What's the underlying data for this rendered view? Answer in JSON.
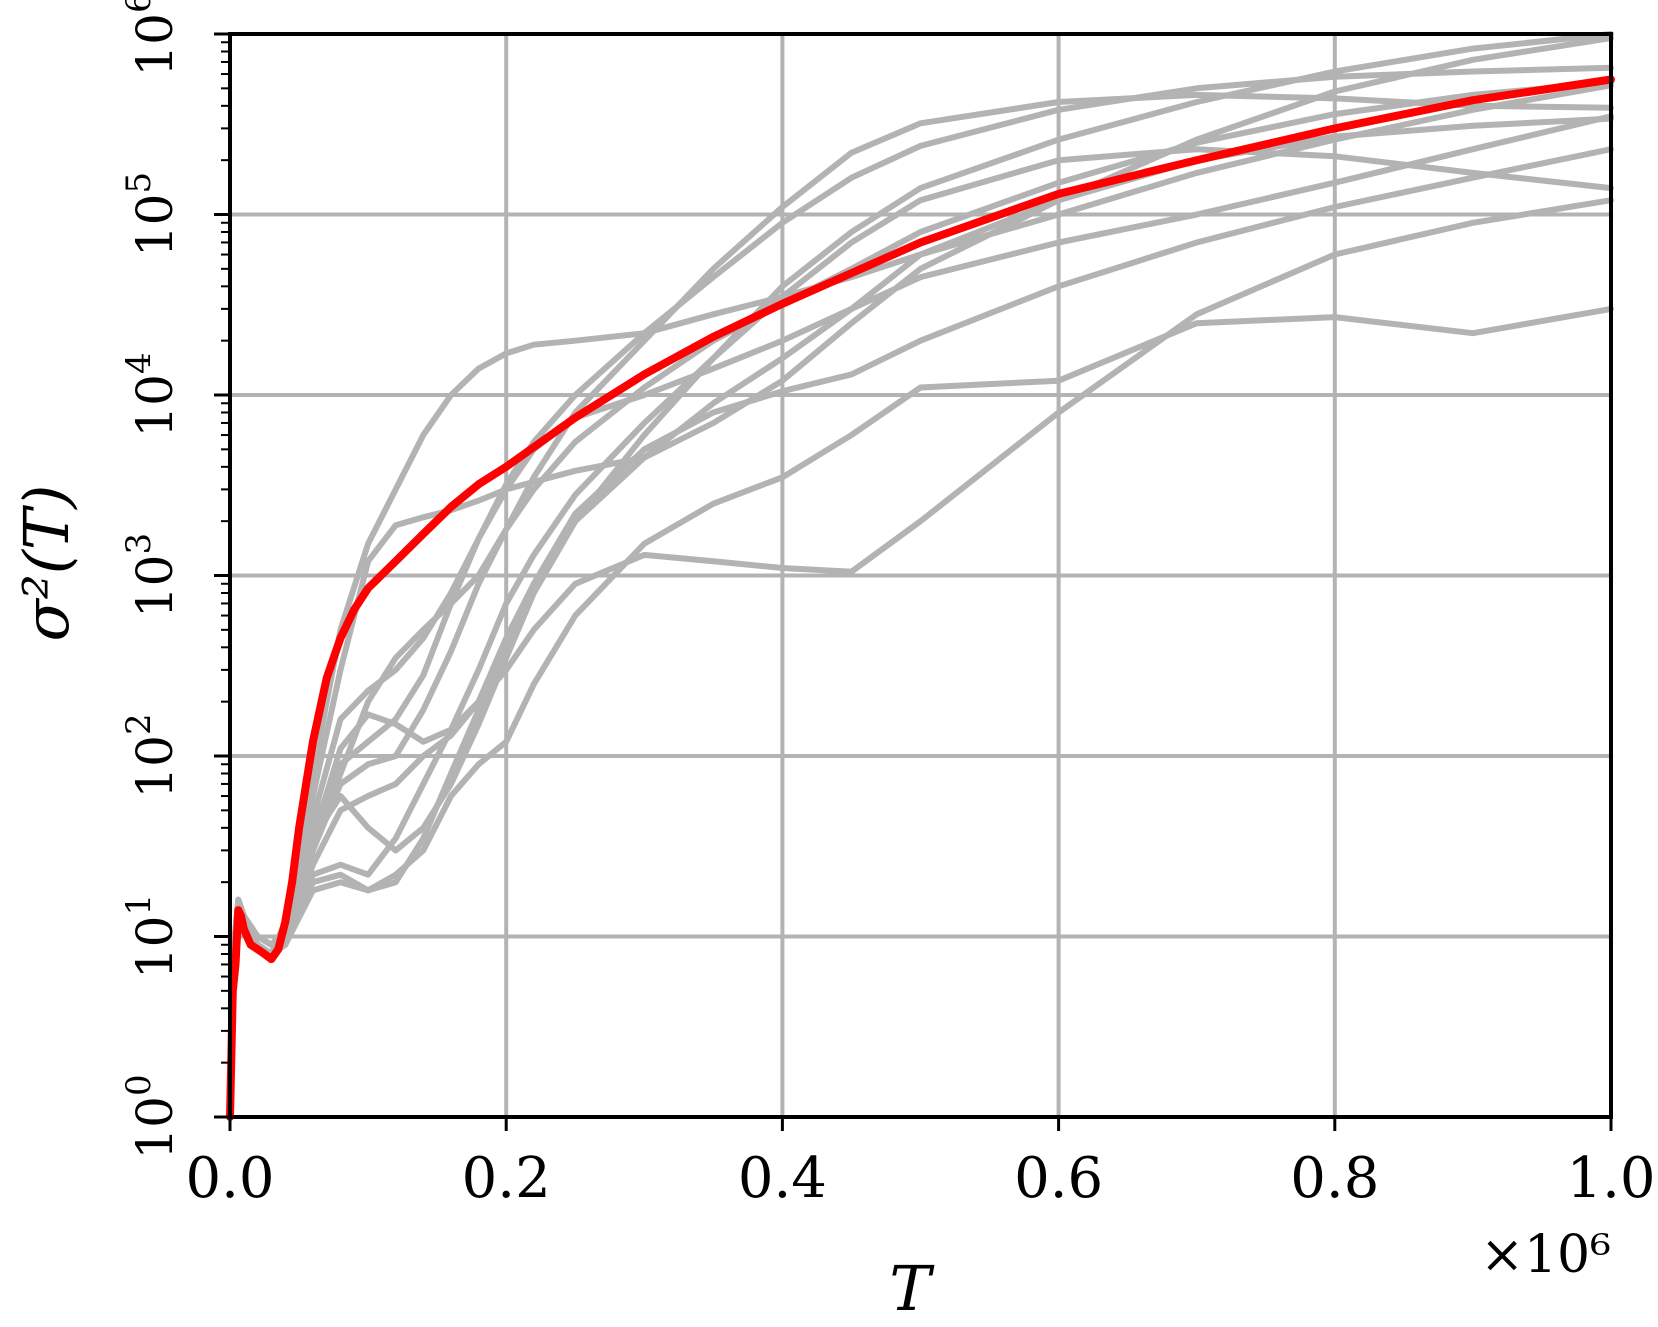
{
  "chart_data": {
    "type": "line",
    "xlabel": "T",
    "ylabel": "σ²(T)",
    "x_multiplier_label": "×10⁶",
    "x_unit_scale": 1000000,
    "xlim": [
      0.0,
      1.0
    ],
    "ylim": [
      1,
      1000000
    ],
    "y_scale": "log",
    "grid": true,
    "x_ticks": [
      0.0,
      0.2,
      0.4,
      0.6,
      0.8,
      1.0
    ],
    "x_tick_labels": [
      "0.0",
      "0.2",
      "0.4",
      "0.6",
      "0.8",
      "1.0"
    ],
    "y_ticks": [
      1,
      10,
      100,
      1000,
      10000,
      100000,
      1000000
    ],
    "y_tick_labels": [
      {
        "base": "10",
        "exp": "0"
      },
      {
        "base": "10",
        "exp": "1"
      },
      {
        "base": "10",
        "exp": "2"
      },
      {
        "base": "10",
        "exp": "3"
      },
      {
        "base": "10",
        "exp": "4"
      },
      {
        "base": "10",
        "exp": "5"
      },
      {
        "base": "10",
        "exp": "6"
      }
    ],
    "colors": {
      "trajectories": "#b3b3b3",
      "mean": "#ff0000",
      "grid": "#b3b3b3",
      "axes": "#000000"
    },
    "mean": {
      "x": [
        0,
        0.002,
        0.004,
        0.006,
        0.008,
        0.01,
        0.015,
        0.02,
        0.025,
        0.03,
        0.035,
        0.04,
        0.045,
        0.05,
        0.06,
        0.07,
        0.08,
        0.09,
        0.1,
        0.12,
        0.14,
        0.16,
        0.18,
        0.2,
        0.25,
        0.3,
        0.35,
        0.4,
        0.5,
        0.6,
        0.7,
        0.8,
        0.9,
        1.0
      ],
      "y": [
        1,
        5,
        7,
        14,
        13,
        11,
        9,
        8.5,
        8,
        7.5,
        8.5,
        12,
        20,
        40,
        120,
        270,
        450,
        650,
        850,
        1200,
        1700,
        2400,
        3200,
        4000,
        7500,
        13000,
        21000,
        32000,
        70000,
        130000,
        200000,
        300000,
        430000,
        560000
      ]
    },
    "series": [
      {
        "x": [
          0,
          0.003,
          0.006,
          0.01,
          0.02,
          0.03,
          0.04,
          0.06,
          0.08,
          0.1,
          0.12,
          0.14,
          0.16,
          0.18,
          0.2,
          0.22,
          0.25,
          0.3,
          0.35,
          0.4,
          0.45,
          0.5,
          0.6,
          0.7,
          0.8,
          0.9,
          1.0
        ],
        "y": [
          1,
          8,
          15,
          12,
          9,
          8,
          9,
          25,
          50,
          60,
          70,
          100,
          130,
          200,
          450,
          900,
          2000,
          4500,
          9000,
          16000,
          30000,
          60000,
          120000,
          200000,
          270000,
          310000,
          340000
        ]
      },
      {
        "x": [
          0,
          0.003,
          0.006,
          0.01,
          0.02,
          0.03,
          0.04,
          0.06,
          0.08,
          0.1,
          0.12,
          0.14,
          0.16,
          0.18,
          0.2,
          0.22,
          0.25,
          0.3,
          0.35,
          0.4,
          0.45,
          0.5,
          0.6,
          0.7,
          0.8,
          0.9,
          1.0
        ],
        "y": [
          1,
          7,
          14,
          11,
          9,
          8,
          10,
          30,
          80,
          200,
          350,
          500,
          700,
          1000,
          1800,
          3000,
          5500,
          11000,
          20000,
          32000,
          50000,
          80000,
          150000,
          250000,
          360000,
          460000,
          540000
        ]
      },
      {
        "x": [
          0,
          0.003,
          0.006,
          0.01,
          0.02,
          0.03,
          0.04,
          0.06,
          0.08,
          0.1,
          0.12,
          0.14,
          0.16,
          0.18,
          0.2,
          0.22,
          0.25,
          0.3,
          0.35,
          0.4,
          0.45,
          0.5,
          0.6,
          0.7,
          0.8,
          0.9,
          1.0
        ],
        "y": [
          1,
          9,
          16,
          13,
          10,
          9,
          11,
          35,
          60,
          40,
          30,
          40,
          70,
          150,
          350,
          800,
          2000,
          6000,
          16000,
          40000,
          80000,
          140000,
          260000,
          420000,
          620000,
          830000,
          1000000
        ]
      },
      {
        "x": [
          0,
          0.003,
          0.006,
          0.01,
          0.02,
          0.03,
          0.04,
          0.06,
          0.08,
          0.1,
          0.12,
          0.14,
          0.16,
          0.18,
          0.2,
          0.22,
          0.25,
          0.3,
          0.35,
          0.4,
          0.45,
          0.5,
          0.6,
          0.7,
          0.8,
          0.9,
          1.0
        ],
        "y": [
          1,
          8,
          14,
          12,
          9,
          8,
          9,
          20,
          22,
          18,
          20,
          35,
          80,
          180,
          400,
          900,
          2200,
          5000,
          8000,
          10500,
          13000,
          20000,
          40000,
          70000,
          110000,
          160000,
          230000
        ]
      },
      {
        "x": [
          0,
          0.003,
          0.006,
          0.01,
          0.02,
          0.03,
          0.04,
          0.06,
          0.08,
          0.1,
          0.12,
          0.14,
          0.16,
          0.18,
          0.2,
          0.22,
          0.25,
          0.3,
          0.35,
          0.4,
          0.45,
          0.5,
          0.6,
          0.7,
          0.8,
          0.9,
          1.0
        ],
        "y": [
          1,
          8,
          15,
          12,
          9,
          8,
          12,
          80,
          500,
          1500,
          3000,
          6000,
          10000,
          14000,
          17000,
          19000,
          20000,
          22000,
          28000,
          35000,
          45000,
          60000,
          100000,
          170000,
          260000,
          380000,
          520000
        ]
      },
      {
        "x": [
          0,
          0.003,
          0.006,
          0.01,
          0.02,
          0.03,
          0.04,
          0.06,
          0.08,
          0.1,
          0.12,
          0.14,
          0.16,
          0.18,
          0.2,
          0.22,
          0.25,
          0.3,
          0.35,
          0.4,
          0.45,
          0.5,
          0.6,
          0.7,
          0.8,
          0.9,
          1.0
        ],
        "y": [
          1,
          7,
          13,
          11,
          9,
          8,
          11,
          60,
          300,
          1200,
          1900,
          2100,
          2300,
          2600,
          3000,
          3300,
          3800,
          4500,
          7000,
          12000,
          25000,
          50000,
          120000,
          260000,
          480000,
          720000,
          950000
        ]
      },
      {
        "x": [
          0,
          0.003,
          0.006,
          0.01,
          0.02,
          0.03,
          0.04,
          0.06,
          0.08,
          0.1,
          0.12,
          0.14,
          0.16,
          0.18,
          0.2,
          0.22,
          0.25,
          0.3,
          0.35,
          0.4,
          0.45,
          0.5,
          0.6,
          0.7,
          0.8,
          0.9,
          1.0
        ],
        "y": [
          1,
          9,
          16,
          13,
          10,
          9,
          10,
          40,
          90,
          120,
          160,
          280,
          700,
          1600,
          3200,
          5500,
          10000,
          22000,
          45000,
          90000,
          160000,
          240000,
          380000,
          500000,
          580000,
          620000,
          650000
        ]
      },
      {
        "x": [
          0,
          0.003,
          0.006,
          0.01,
          0.02,
          0.03,
          0.04,
          0.06,
          0.08,
          0.1,
          0.12,
          0.14,
          0.16,
          0.18,
          0.2,
          0.22,
          0.25,
          0.3,
          0.35,
          0.4,
          0.45,
          0.5,
          0.6,
          0.7,
          0.8,
          0.9,
          1.0
        ],
        "y": [
          1,
          8,
          14,
          12,
          9,
          8,
          9,
          22,
          25,
          22,
          35,
          70,
          140,
          300,
          700,
          1300,
          2800,
          7000,
          16000,
          35000,
          70000,
          120000,
          200000,
          230000,
          210000,
          170000,
          140000
        ]
      },
      {
        "x": [
          0,
          0.003,
          0.006,
          0.01,
          0.02,
          0.03,
          0.04,
          0.06,
          0.08,
          0.1,
          0.12,
          0.14,
          0.16,
          0.18,
          0.2,
          0.22,
          0.25,
          0.3,
          0.35,
          0.4,
          0.45,
          0.5,
          0.6,
          0.7,
          0.8,
          0.9,
          1.0
        ],
        "y": [
          1,
          8,
          15,
          12,
          9,
          8,
          10,
          35,
          110,
          170,
          150,
          120,
          140,
          200,
          300,
          500,
          900,
          1300,
          1200,
          1100,
          1050,
          2000,
          8000,
          28000,
          60000,
          90000,
          120000
        ]
      },
      {
        "x": [
          0,
          0.003,
          0.006,
          0.01,
          0.02,
          0.03,
          0.04,
          0.06,
          0.08,
          0.1,
          0.12,
          0.14,
          0.16,
          0.18,
          0.2,
          0.22,
          0.25,
          0.3,
          0.35,
          0.4,
          0.45,
          0.5,
          0.6,
          0.7,
          0.8,
          0.9,
          1.0
        ],
        "y": [
          1,
          7,
          13,
          11,
          9,
          8,
          9,
          18,
          20,
          18,
          22,
          30,
          60,
          90,
          120,
          250,
          600,
          1500,
          2500,
          3500,
          6000,
          11000,
          12000,
          25000,
          27000,
          22000,
          30000
        ]
      },
      {
        "x": [
          0,
          0.003,
          0.006,
          0.01,
          0.02,
          0.03,
          0.04,
          0.06,
          0.08,
          0.1,
          0.12,
          0.14,
          0.16,
          0.18,
          0.2,
          0.22,
          0.25,
          0.3,
          0.35,
          0.4,
          0.45,
          0.5,
          0.6,
          0.7,
          0.8,
          0.9,
          1.0
        ],
        "y": [
          1,
          9,
          16,
          13,
          10,
          9,
          11,
          45,
          160,
          230,
          300,
          450,
          800,
          1600,
          3000,
          5000,
          7500,
          10000,
          14000,
          20000,
          30000,
          45000,
          70000,
          100000,
          150000,
          230000,
          350000
        ]
      },
      {
        "x": [
          0,
          0.003,
          0.006,
          0.01,
          0.02,
          0.03,
          0.04,
          0.06,
          0.08,
          0.1,
          0.12,
          0.14,
          0.16,
          0.18,
          0.2,
          0.22,
          0.25,
          0.3,
          0.35,
          0.4,
          0.45,
          0.5,
          0.6,
          0.7,
          0.8,
          0.9,
          1.0
        ],
        "y": [
          1,
          8,
          14,
          12,
          9,
          8,
          10,
          30,
          70,
          90,
          100,
          180,
          380,
          900,
          1800,
          3500,
          8000,
          20000,
          50000,
          110000,
          220000,
          320000,
          420000,
          460000,
          440000,
          400000,
          390000
        ]
      }
    ]
  }
}
